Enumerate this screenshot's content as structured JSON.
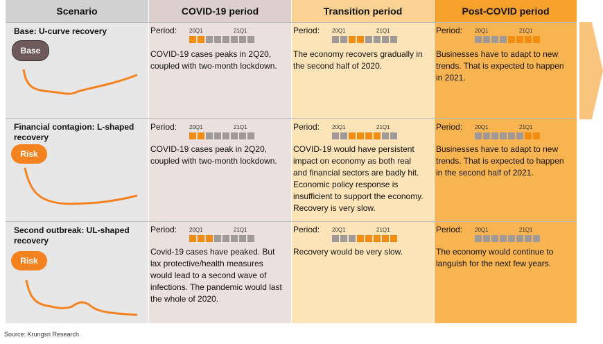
{
  "headers": [
    "Scenario",
    "COVID-19 period",
    "Transition period",
    "Post-COVID period"
  ],
  "period_label": "Period:",
  "quarter_labels": [
    "20Q1",
    "21Q1"
  ],
  "colors": {
    "highlight": "#f28d12",
    "inactive": "#a0999a",
    "risk": "#f58220",
    "base": "#6e5a5a"
  },
  "scenarios": [
    {
      "title": "Base: U-curve recovery",
      "badge": "Base",
      "covid": {
        "active": [
          1,
          2
        ],
        "text": "COVID-19 cases peaks in 2Q20, coupled with two-month lockdown."
      },
      "transition": {
        "active": [
          3,
          4
        ],
        "text": "The economy recovers gradually in the second half of 2020."
      },
      "post": {
        "active": [
          5,
          6,
          7,
          8
        ],
        "text": "Businesses have to adapt to new trends. That is expected to happen in 2021."
      }
    },
    {
      "title": "Financial contagion: L-shaped recovery",
      "badge": "Risk",
      "covid": {
        "active": [
          1,
          2
        ],
        "text": "COVID-19 cases peak in 2Q20, coupled with two-month lockdown."
      },
      "transition": {
        "active": [
          3,
          4,
          5,
          6
        ],
        "text": "COVID-19 would have persistent impact on economy as both real and financial sectors are badly hit. Economic policy response is insufficient to support the economy. Recovery is very slow."
      },
      "post": {
        "active": [
          7,
          8
        ],
        "text": "Businesses have to adapt to new trends. That is expected to happen in the second half of 2021."
      }
    },
    {
      "title": "Second outbreak: UL-shaped recovery",
      "badge": "Risk",
      "covid": {
        "active": [
          1,
          2,
          3
        ],
        "text": "Covid-19 cases have peaked. But lax protective/health measures would lead to a second wave of infections. The pandemic would last the whole of 2020."
      },
      "transition": {
        "active": [
          4,
          5,
          6,
          7,
          8
        ],
        "text": "Recovery would be very slow."
      },
      "post": {
        "active": [],
        "text": "The economy would continue to languish for the next few years."
      }
    }
  ],
  "source": "Source: Krungsri Research"
}
